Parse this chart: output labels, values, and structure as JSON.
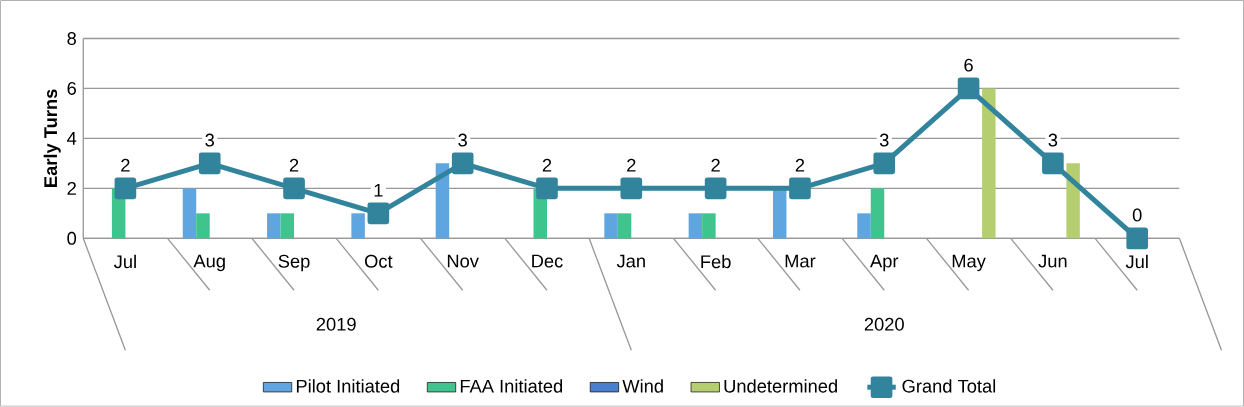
{
  "chart_data": {
    "type": "bar",
    "ylabel": "**Early Turns**",
    "categories": [
      "Jul",
      "Aug",
      "Sep",
      "Oct",
      "Nov",
      "Dec",
      "Jan",
      "Feb",
      "Mar",
      "Apr",
      "May",
      "Jun",
      "Jul"
    ],
    "annotations": [
      "2019",
      "2020"
    ],
    "series": [
      {
        "name": "Pilot Initiated",
        "color": "#5fa5e0",
        "values": [
          0,
          2,
          1,
          1,
          3,
          0,
          1,
          1,
          2,
          1,
          0,
          0,
          0
        ]
      },
      {
        "name": "FAA Initiated",
        "color": "#3fc48e",
        "values": [
          2,
          1,
          1,
          0,
          0,
          2,
          1,
          1,
          0,
          2,
          0,
          0,
          0
        ]
      },
      {
        "name": "Wind",
        "color": "#4a7fd0",
        "values": [
          0,
          0,
          0,
          0,
          0,
          0,
          0,
          0,
          0,
          0,
          0,
          0,
          0
        ]
      },
      {
        "name": "Undetermined",
        "color": "#b5cf70",
        "values": [
          0,
          0,
          0,
          0,
          0,
          0,
          0,
          0,
          0,
          0,
          6,
          3,
          0
        ]
      },
      {
        "name": "Grand Total",
        "type": "line",
        "color": "#31849b",
        "marker": "square",
        "values": [
          2,
          3,
          2,
          1,
          3,
          2,
          2,
          2,
          2,
          3,
          6,
          3,
          0
        ],
        "value_labels": [
          "2",
          "3",
          "2",
          "1",
          "3",
          "2",
          "2",
          "2",
          "2",
          "3",
          "6",
          "3",
          "0"
        ]
      }
    ],
    "ylim": [
      0,
      8
    ],
    "yticks": [
      0,
      2,
      4,
      6,
      8
    ],
    "grid": "y",
    "legend": "bottom"
  }
}
